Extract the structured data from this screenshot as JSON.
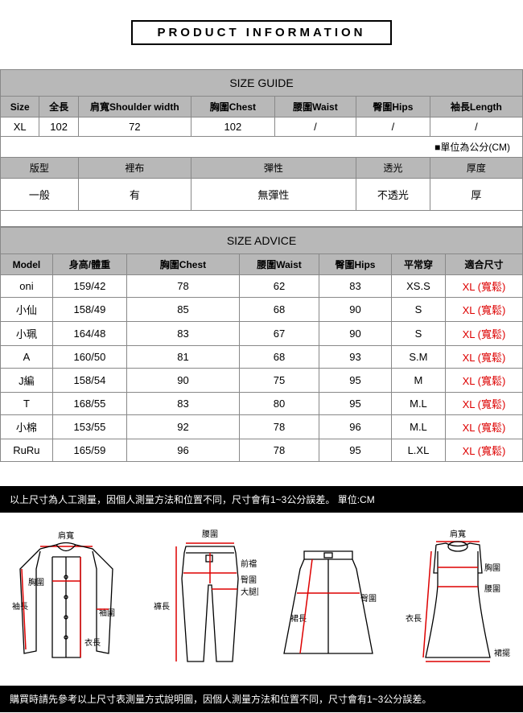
{
  "header": {
    "title": "PRODUCT INFORMATION"
  },
  "size_guide": {
    "title": "SIZE GUIDE",
    "columns": [
      "Size",
      "全長",
      "肩寬Shoulder width",
      "胸圍Chest",
      "腰圍Waist",
      "臀圍Hips",
      "袖長Length"
    ],
    "rows": [
      [
        "XL",
        "102",
        "72",
        "102",
        "/",
        "/",
        "/"
      ]
    ],
    "unit_note": "■單位為公分(CM)",
    "attr_headers": [
      "版型",
      "裡布",
      "彈性",
      "透光",
      "厚度"
    ],
    "attr_values": [
      "一般",
      "有",
      "無彈性",
      "不透光",
      "厚"
    ]
  },
  "size_advice": {
    "title": "SIZE ADVICE",
    "columns": [
      "Model",
      "身高/體重",
      "胸圍Chest",
      "腰圍Waist",
      "臀圍Hips",
      "平常穿",
      "適合尺寸"
    ],
    "rows": [
      [
        "oni",
        "159/42",
        "78",
        "62",
        "83",
        "XS.S",
        "XL (寬鬆)"
      ],
      [
        "小仙",
        "158/49",
        "85",
        "68",
        "90",
        "S",
        "XL (寬鬆)"
      ],
      [
        "小珮",
        "164/48",
        "83",
        "67",
        "90",
        "S",
        "XL (寬鬆)"
      ],
      [
        "A",
        "160/50",
        "81",
        "68",
        "93",
        "S.M",
        "XL (寬鬆)"
      ],
      [
        "J編",
        "158/54",
        "90",
        "75",
        "95",
        "M",
        "XL (寬鬆)"
      ],
      [
        "T",
        "168/55",
        "83",
        "80",
        "95",
        "M.L",
        "XL (寬鬆)"
      ],
      [
        "小棉",
        "153/55",
        "92",
        "78",
        "96",
        "M.L",
        "XL (寬鬆)"
      ],
      [
        "RuRu",
        "165/59",
        "96",
        "78",
        "95",
        "L.XL",
        "XL (寬鬆)"
      ]
    ]
  },
  "notes": {
    "top_note": "以上尺寸為人工測量，因個人測量方法和位置不同，尺寸會有1~3公分誤差。 單位:CM",
    "bottom_note": "購買時請先參考以上尺寸表測量方式說明圖，因個人測量方法和位置不同，尺寸會有1~3公分誤差。"
  },
  "diagram_labels": {
    "shoulder": "肩寬",
    "chest": "胸圍",
    "sleeve_length": "袖長",
    "sleeve_w": "袖圍",
    "body_length": "衣長",
    "waist": "腰圍",
    "front_rise": "前襠",
    "hip": "臀圍",
    "thigh": "大腿圍",
    "pants_length": "褲長",
    "skirt_length": "裙長",
    "hem": "裙擺"
  }
}
